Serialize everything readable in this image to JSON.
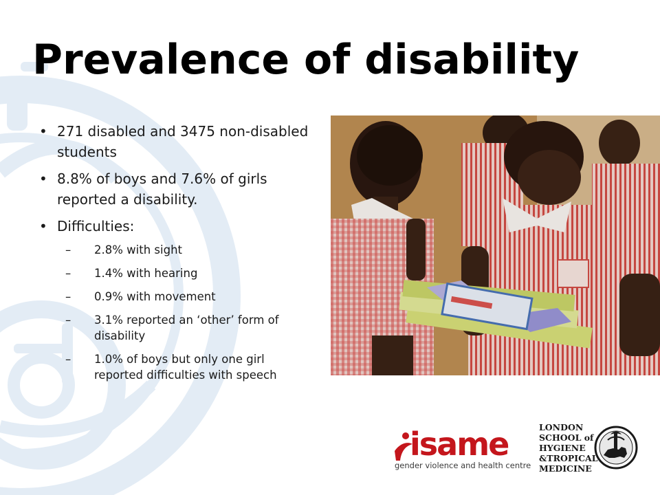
{
  "slide": {
    "title": "Prevalence of disability",
    "bullets": [
      {
        "text": "271 disabled and 3475 non-disabled students"
      },
      {
        "text": "8.8% of boys  and 7.6% of girls reported a disability."
      },
      {
        "text": "Difficulties:"
      }
    ],
    "difficulties": [
      {
        "dash": "–",
        "text": "2.8% with sight"
      },
      {
        "dash": "–",
        "text": "1.4% with hearing"
      },
      {
        "dash": "–",
        "text": "0.9% with movement"
      },
      {
        "dash": "–",
        "text": "3.1% reported an ‘other’ form of disability"
      },
      {
        "dash": "–",
        "text": "1.0% of boys but only one girl reported difficulties with speech"
      }
    ]
  },
  "logos": {
    "isame": {
      "wordmark": "isame",
      "tagline": "gender violence and health centre",
      "brand_color": "#c4161c"
    },
    "lshtm": {
      "name": "LONDON SCHOOL of HYGIENE &TROPICAL MEDICINE"
    }
  },
  "colors": {
    "watermark": "#e3ecf5",
    "uniform_stripe": "#d9534f"
  }
}
